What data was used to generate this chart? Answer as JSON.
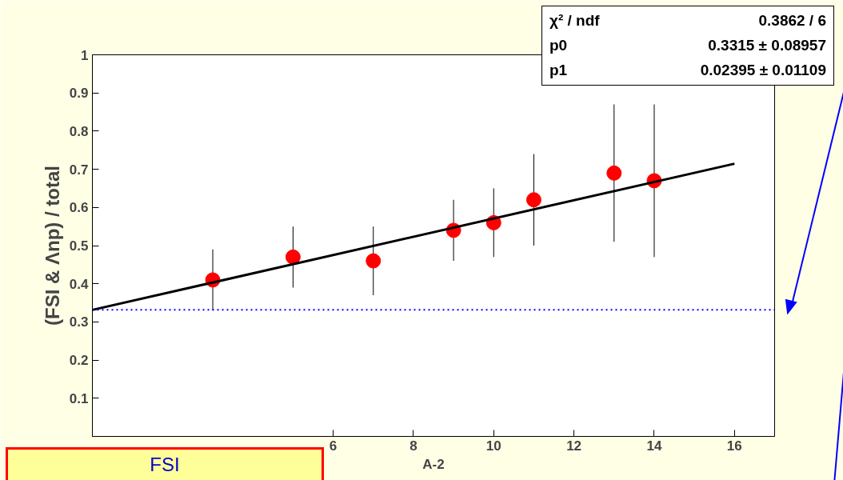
{
  "chart_data": {
    "type": "scatter",
    "ylabel": "(FSI & Λnp) / total",
    "xlabel": "A-2",
    "xlim": [
      0,
      17
    ],
    "ylim": [
      0,
      1
    ],
    "xticks": [
      6,
      8,
      10,
      12,
      14,
      16
    ],
    "yticks": [
      0.1,
      0.2,
      0.3,
      0.4,
      0.5,
      0.6,
      0.7,
      0.8,
      0.9,
      1
    ],
    "grid": false,
    "series": [
      {
        "marker": "circle",
        "color": "#ff0000",
        "x": [
          3,
          5,
          7,
          9,
          10,
          11,
          13,
          14
        ],
        "values": [
          0.41,
          0.47,
          0.46,
          0.54,
          0.56,
          0.62,
          0.69,
          0.67
        ],
        "errors": [
          [
            0.33,
            0.49
          ],
          [
            0.39,
            0.55
          ],
          [
            0.37,
            0.55
          ],
          [
            0.46,
            0.62
          ],
          [
            0.47,
            0.65
          ],
          [
            0.5,
            0.74
          ],
          [
            0.51,
            0.87
          ],
          [
            0.47,
            0.87
          ]
        ]
      },
      {
        "type": "line",
        "color": "#000000",
        "x": [
          0,
          16
        ],
        "values": [
          0.3315,
          0.7147
        ]
      }
    ],
    "ref_lines": [
      {
        "axis": "y",
        "value": 0.3315,
        "color": "#0000ff",
        "line_style": "dotted"
      }
    ],
    "annotations": [
      "χ² / ndf",
      "0.3862 / 6",
      "p0",
      "0.3315 ± 0.08957",
      "p1",
      "0.02395 ± 0.01109",
      "FSI"
    ]
  }
}
